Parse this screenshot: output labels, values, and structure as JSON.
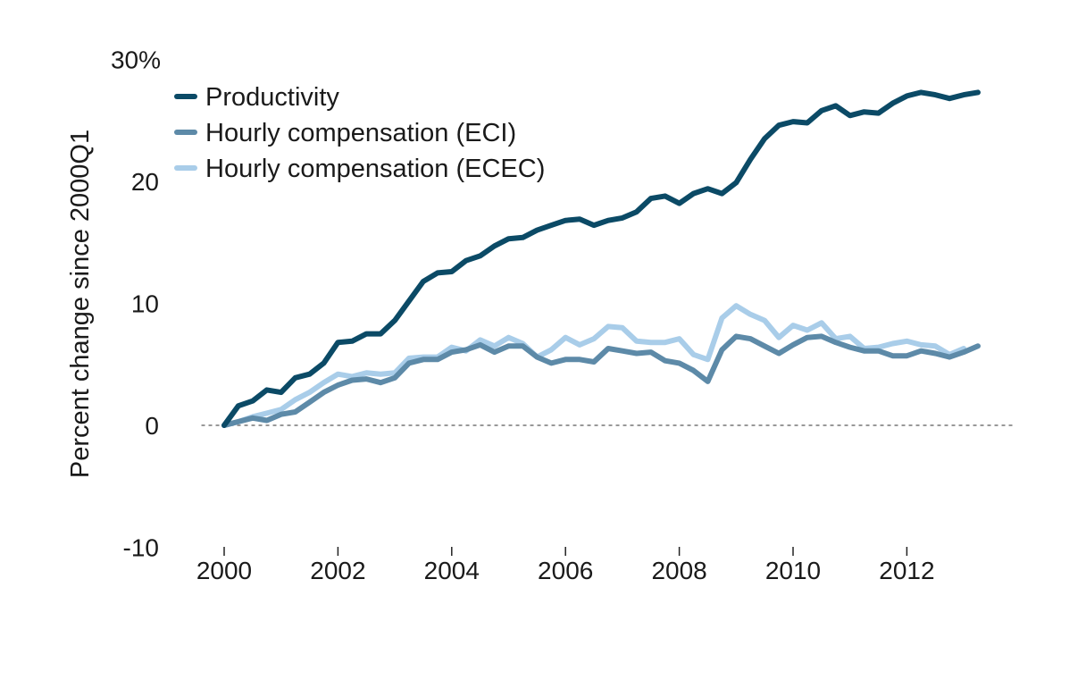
{
  "chart_data": {
    "type": "line",
    "ylabel": "Percent change since 2000Q1",
    "xlabel": "",
    "xlim": [
      1999.6,
      2013.9
    ],
    "ylim": [
      -10,
      30
    ],
    "x_ticks": [
      2000,
      2002,
      2004,
      2006,
      2008,
      2010,
      2012
    ],
    "x_tick_labels": [
      "2000",
      "2002",
      "2004",
      "2006",
      "2008",
      "2010",
      "2012"
    ],
    "y_ticks": [
      30,
      20,
      10,
      0,
      -10
    ],
    "y_tick_labels": [
      "30%",
      "20",
      "10",
      "0",
      "-10"
    ],
    "zero_line": true,
    "grid": false,
    "legend_position": "top-left",
    "colors": {
      "productivity": "#0b4a66",
      "eci": "#5d8aa8",
      "ecec": "#a9cde9",
      "zero_line": "#777777"
    },
    "series": [
      {
        "name": "Productivity",
        "color": "#0b4a66",
        "x": [
          2000.0,
          2000.25,
          2000.5,
          2000.75,
          2001.0,
          2001.25,
          2001.5,
          2001.75,
          2002.0,
          2002.25,
          2002.5,
          2002.75,
          2003.0,
          2003.25,
          2003.5,
          2003.75,
          2004.0,
          2004.25,
          2004.5,
          2004.75,
          2005.0,
          2005.25,
          2005.5,
          2005.75,
          2006.0,
          2006.25,
          2006.5,
          2006.75,
          2007.0,
          2007.25,
          2007.5,
          2007.75,
          2008.0,
          2008.25,
          2008.5,
          2008.75,
          2009.0,
          2009.25,
          2009.5,
          2009.75,
          2010.0,
          2010.25,
          2010.5,
          2010.75,
          2011.0,
          2011.25,
          2011.5,
          2011.75,
          2012.0,
          2012.25,
          2012.5,
          2012.75,
          2013.0,
          2013.25
        ],
        "values": [
          0.0,
          1.6,
          2.0,
          2.9,
          2.7,
          3.9,
          4.2,
          5.1,
          6.8,
          6.9,
          7.5,
          7.5,
          8.6,
          10.2,
          11.8,
          12.5,
          12.6,
          13.5,
          13.9,
          14.7,
          15.3,
          15.4,
          16.0,
          16.4,
          16.8,
          16.9,
          16.4,
          16.8,
          17.0,
          17.5,
          18.6,
          18.8,
          18.2,
          19.0,
          19.4,
          19.0,
          19.9,
          21.8,
          23.5,
          24.6,
          24.9,
          24.8,
          25.8,
          26.2,
          25.4,
          25.7,
          25.6,
          26.4,
          27.0,
          27.3,
          27.1,
          26.8,
          27.1,
          27.3
        ]
      },
      {
        "name": "Hourly compensation (ECI)",
        "color": "#5d8aa8",
        "x": [
          2000.0,
          2000.25,
          2000.5,
          2000.75,
          2001.0,
          2001.25,
          2001.5,
          2001.75,
          2002.0,
          2002.25,
          2002.5,
          2002.75,
          2003.0,
          2003.25,
          2003.5,
          2003.75,
          2004.0,
          2004.25,
          2004.5,
          2004.75,
          2005.0,
          2005.25,
          2005.5,
          2005.75,
          2006.0,
          2006.25,
          2006.5,
          2006.75,
          2007.0,
          2007.25,
          2007.5,
          2007.75,
          2008.0,
          2008.25,
          2008.5,
          2008.75,
          2009.0,
          2009.25,
          2009.5,
          2009.75,
          2010.0,
          2010.25,
          2010.5,
          2010.75,
          2011.0,
          2011.25,
          2011.5,
          2011.75,
          2012.0,
          2012.25,
          2012.5,
          2012.75,
          2013.0,
          2013.25
        ],
        "values": [
          0.0,
          0.3,
          0.6,
          0.4,
          0.9,
          1.1,
          1.9,
          2.7,
          3.3,
          3.7,
          3.8,
          3.5,
          3.9,
          5.1,
          5.4,
          5.4,
          6.0,
          6.2,
          6.6,
          6.0,
          6.5,
          6.5,
          5.6,
          5.1,
          5.4,
          5.4,
          5.2,
          6.3,
          6.1,
          5.9,
          6.0,
          5.3,
          5.1,
          4.5,
          3.6,
          6.2,
          7.3,
          7.1,
          6.5,
          5.9,
          6.6,
          7.2,
          7.3,
          6.8,
          6.4,
          6.1,
          6.1,
          5.7,
          5.7,
          6.1,
          5.9,
          5.6,
          6.0,
          6.5
        ]
      },
      {
        "name": "Hourly compensation (ECEC)",
        "color": "#a9cde9",
        "x": [
          2000.0,
          2000.25,
          2000.5,
          2000.75,
          2001.0,
          2001.25,
          2001.5,
          2001.75,
          2002.0,
          2002.25,
          2002.5,
          2002.75,
          2003.0,
          2003.25,
          2003.5,
          2003.75,
          2004.0,
          2004.25,
          2004.5,
          2004.75,
          2005.0,
          2005.25,
          2005.5,
          2005.75,
          2006.0,
          2006.25,
          2006.5,
          2006.75,
          2007.0,
          2007.25,
          2007.5,
          2007.75,
          2008.0,
          2008.25,
          2008.5,
          2008.75,
          2009.0,
          2009.25,
          2009.5,
          2009.75,
          2010.0,
          2010.25,
          2010.5,
          2010.75,
          2011.0,
          2011.25,
          2011.5,
          2011.75,
          2012.0,
          2012.25,
          2012.5,
          2012.75,
          2013.0
        ],
        "values": [
          0.0,
          0.3,
          0.7,
          1.0,
          1.3,
          2.1,
          2.7,
          3.5,
          4.2,
          4.0,
          4.3,
          4.2,
          4.3,
          5.5,
          5.6,
          5.6,
          6.4,
          6.1,
          7.0,
          6.5,
          7.2,
          6.7,
          5.6,
          6.2,
          7.2,
          6.6,
          7.1,
          8.1,
          8.0,
          6.9,
          6.8,
          6.8,
          7.1,
          5.8,
          5.4,
          8.8,
          9.8,
          9.1,
          8.6,
          7.2,
          8.2,
          7.8,
          8.4,
          7.1,
          7.3,
          6.3,
          6.4,
          6.7,
          6.9,
          6.6,
          6.5,
          5.8,
          6.3
        ]
      }
    ]
  }
}
